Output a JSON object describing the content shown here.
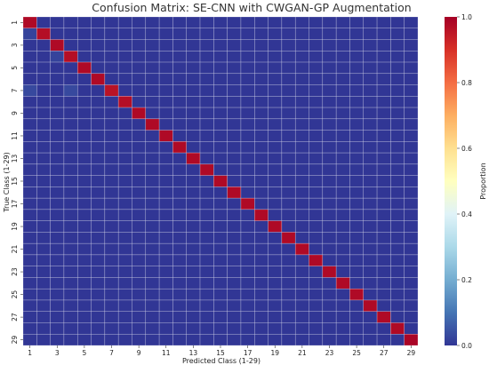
{
  "chart_data": {
    "type": "heatmap",
    "title": "Confusion Matrix: SE-CNN with CWGAN-GP Augmentation",
    "xlabel": "Predicted Class (1-29)",
    "ylabel": "True Class (1-29)",
    "n_classes": 29,
    "x_tick_labels": [
      "1",
      "3",
      "5",
      "7",
      "9",
      "11",
      "13",
      "15",
      "17",
      "19",
      "21",
      "23",
      "25",
      "27",
      "29"
    ],
    "y_tick_labels": [
      "1",
      "3",
      "5",
      "7",
      "9",
      "11",
      "13",
      "15",
      "17",
      "19",
      "21",
      "23",
      "25",
      "27",
      "29"
    ],
    "diagonal_values": [
      0.98,
      0.97,
      0.98,
      0.97,
      0.98,
      0.98,
      0.96,
      0.97,
      0.98,
      0.98,
      0.98,
      0.98,
      0.98,
      0.98,
      0.98,
      0.98,
      0.98,
      0.98,
      0.98,
      0.98,
      0.98,
      0.98,
      0.98,
      0.98,
      0.98,
      0.98,
      0.98,
      0.98,
      0.99
    ],
    "off_diagonal": [
      {
        "true": 7,
        "pred": 1,
        "value": 0.03
      },
      {
        "true": 7,
        "pred": 4,
        "value": 0.03
      },
      {
        "true": 2,
        "pred": 1,
        "value": 0.02
      },
      {
        "true": 4,
        "pred": 3,
        "value": 0.02
      }
    ],
    "default_off_diagonal_value": 0.0,
    "colorbar": {
      "label": "Proportion",
      "range": [
        0.0,
        1.0
      ],
      "tick_labels": [
        "0.0",
        "0.2",
        "0.4",
        "0.6",
        "0.8",
        "1.0"
      ],
      "colormap": [
        "#313695",
        "#4575b4",
        "#74add1",
        "#abd9e9",
        "#e0f3f8",
        "#ffffbf",
        "#fee090",
        "#fdae61",
        "#f46d43",
        "#d73027",
        "#a50026"
      ]
    },
    "grid": true
  }
}
